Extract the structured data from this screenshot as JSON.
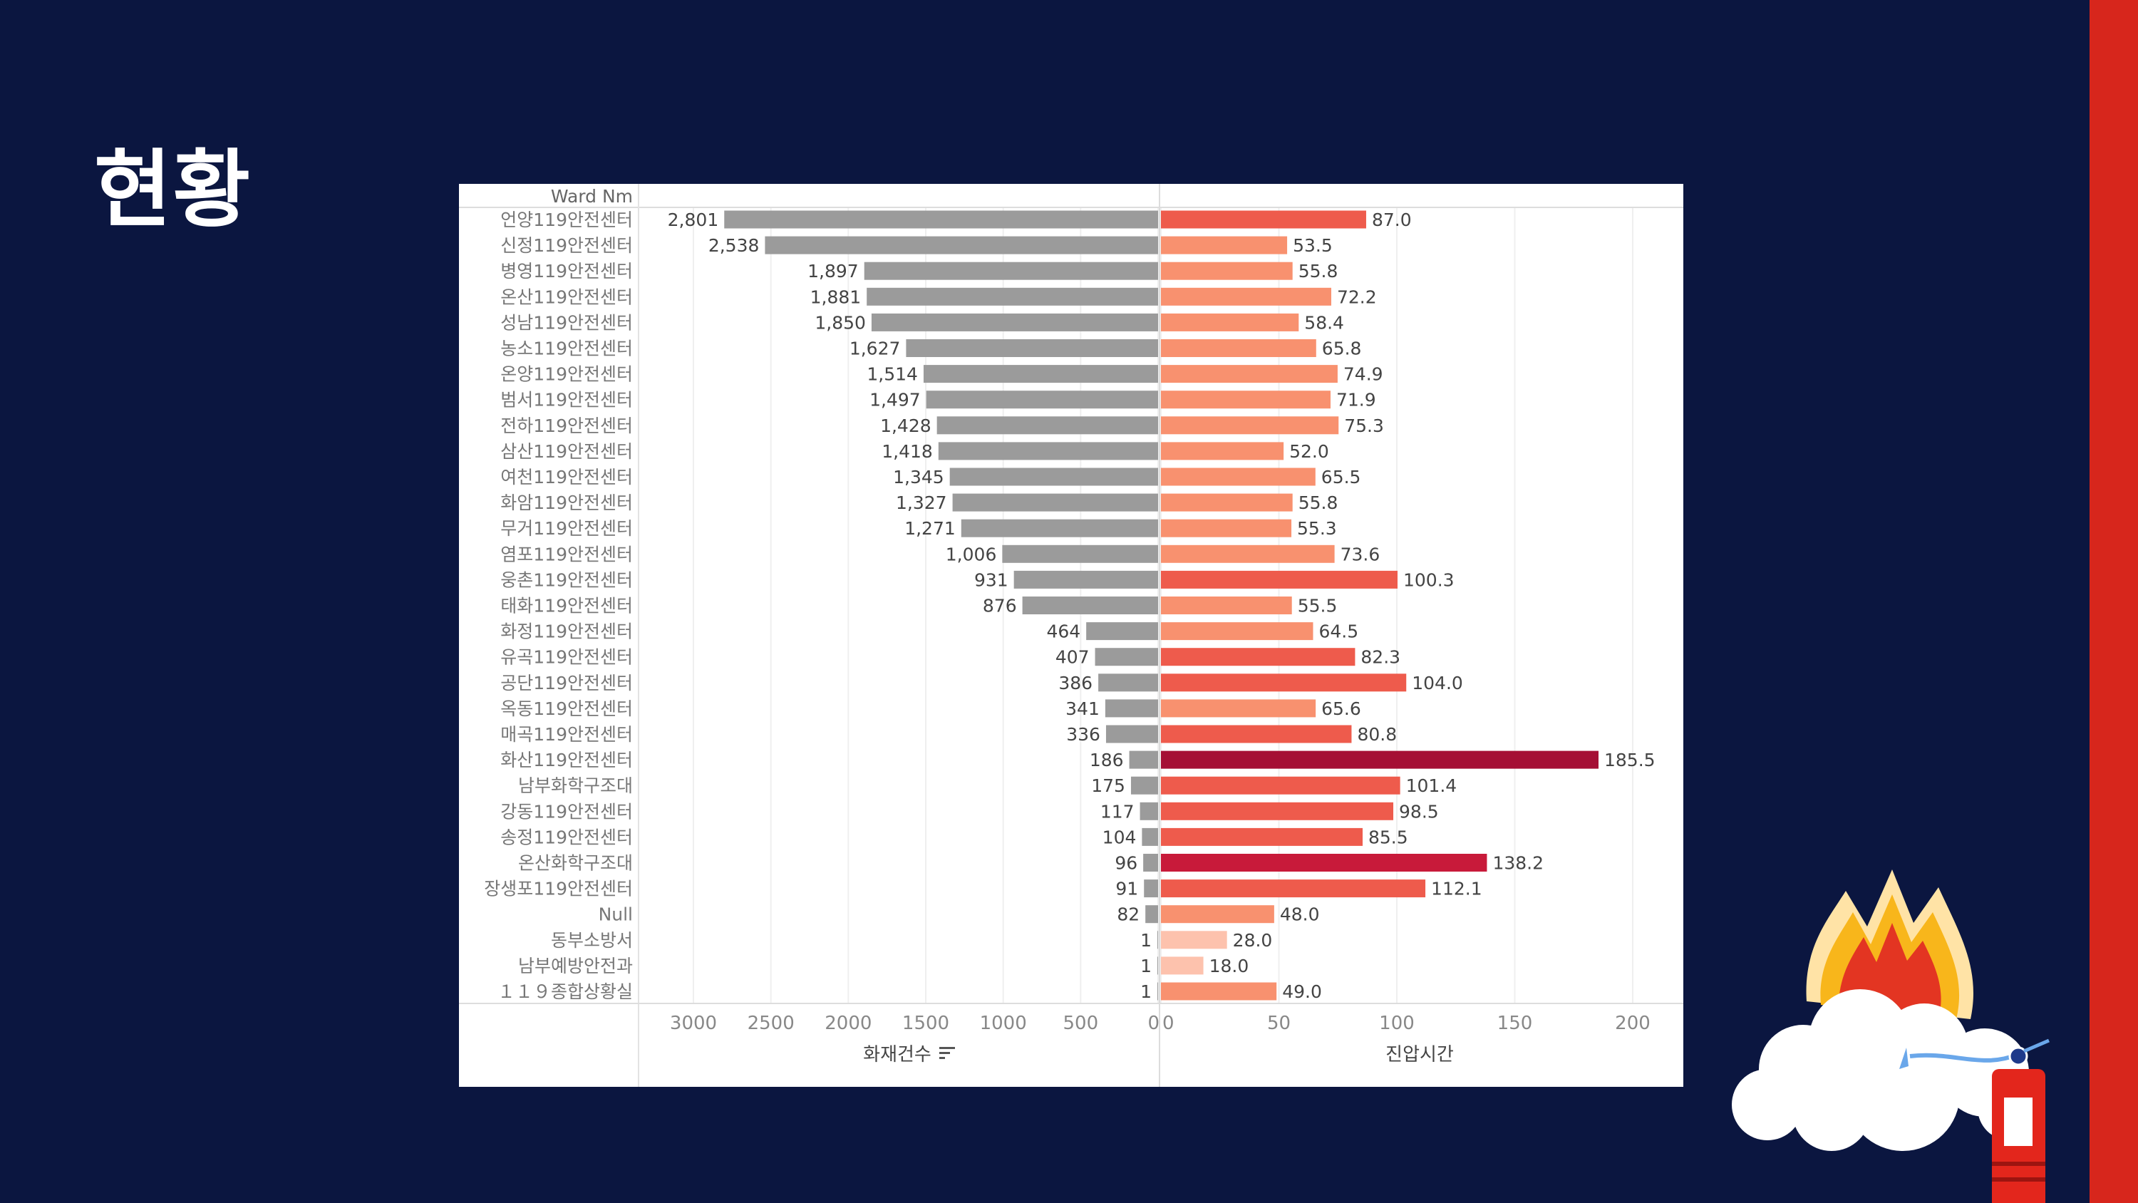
{
  "slide": {
    "title": "현황"
  },
  "chart_data": {
    "type": "bar",
    "row_header": "Ward Nm",
    "categories": [
      "언양119안전센터",
      "신정119안전센터",
      "병영119안전센터",
      "온산119안전센터",
      "성남119안전센터",
      "농소119안전센터",
      "온양119안전센터",
      "범서119안전센터",
      "전하119안전센터",
      "삼산119안전센터",
      "여천119안전센터",
      "화암119안전센터",
      "무거119안전센터",
      "염포119안전센터",
      "웅촌119안전센터",
      "태화119안전센터",
      "화정119안전센터",
      "유곡119안전센터",
      "공단119안전센터",
      "옥동119안전센터",
      "매곡119안전센터",
      "화산119안전센터",
      "남부화학구조대",
      "강동119안전센터",
      "송정119안전센터",
      "온산화학구조대",
      "장생포119안전센터",
      "Null",
      "동부소방서",
      "남부예방안전과",
      "１１９종합상황실"
    ],
    "series": [
      {
        "name": "화재건수",
        "color": "#9b9b9b",
        "xlim": [
          0,
          3000
        ],
        "ticks": [
          3000,
          2500,
          2000,
          1500,
          1000,
          500,
          0
        ],
        "labels": [
          "2,801",
          "2,538",
          "1,897",
          "1,881",
          "1,850",
          "1,627",
          "1,514",
          "1,497",
          "1,428",
          "1,418",
          "1,345",
          "1,327",
          "1,271",
          "1,006",
          "931",
          "876",
          "464",
          "407",
          "386",
          "341",
          "336",
          "186",
          "175",
          "117",
          "104",
          "96",
          "91",
          "82",
          "1",
          "1",
          "1"
        ],
        "values": [
          2801,
          2538,
          1897,
          1881,
          1850,
          1627,
          1514,
          1497,
          1428,
          1418,
          1345,
          1327,
          1271,
          1006,
          931,
          876,
          464,
          407,
          386,
          341,
          336,
          186,
          175,
          117,
          104,
          96,
          91,
          82,
          1,
          1,
          1
        ]
      },
      {
        "name": "진압시간",
        "xlim": [
          0,
          200
        ],
        "ticks": [
          0,
          50,
          100,
          150,
          200
        ],
        "color_scale": [
          "#fdc2ad",
          "#f8916f",
          "#ee5b4c",
          "#c81a3a",
          "#a50f35"
        ],
        "labels": [
          "87.0",
          "53.5",
          "55.8",
          "72.2",
          "58.4",
          "65.8",
          "74.9",
          "71.9",
          "75.3",
          "52.0",
          "65.5",
          "55.8",
          "55.3",
          "73.6",
          "100.3",
          "55.5",
          "64.5",
          "82.3",
          "104.0",
          "65.6",
          "80.8",
          "185.5",
          "101.4",
          "98.5",
          "85.5",
          "138.2",
          "112.1",
          "48.0",
          "28.0",
          "18.0",
          "49.0"
        ],
        "values": [
          87.0,
          53.5,
          55.8,
          72.2,
          58.4,
          65.8,
          74.9,
          71.9,
          75.3,
          52.0,
          65.5,
          55.8,
          55.3,
          73.6,
          100.3,
          55.5,
          64.5,
          82.3,
          104.0,
          65.6,
          80.8,
          185.5,
          101.4,
          98.5,
          85.5,
          138.2,
          112.1,
          48.0,
          28.0,
          18.0,
          49.0
        ]
      }
    ],
    "sort_icon": "sort-descending-icon",
    "grid": true,
    "legend": "none"
  },
  "decor": {
    "icons": [
      "cloud-icon",
      "fire-icon",
      "fire-extinguisher-icon"
    ]
  }
}
